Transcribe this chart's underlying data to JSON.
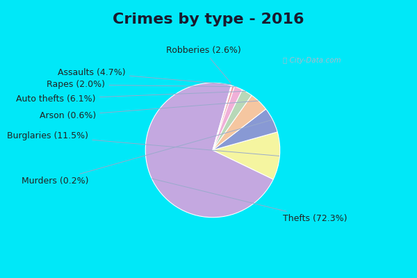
{
  "title": "Crimes by type - 2016",
  "title_fontsize": 16,
  "title_fontweight": "bold",
  "labels": [
    "Thefts",
    "Burglaries",
    "Auto thefts",
    "Assaults",
    "Robberies",
    "Rapes",
    "Arson",
    "Murders"
  ],
  "percentages": [
    72.3,
    11.5,
    6.1,
    4.7,
    2.6,
    2.0,
    0.6,
    0.2
  ],
  "colors": [
    "#c4a8e0",
    "#f5f5a0",
    "#8899d4",
    "#f5c6a0",
    "#b8d8b8",
    "#f0b0d8",
    "#f0a0a8",
    "#d0ead0"
  ],
  "startangle": 74,
  "bg_outer": "#00e8f8",
  "bg_inner": "#d0ecd8",
  "watermark_text": "ⓘ City-Data.com",
  "label_fontsize": 9,
  "label_color": "#222222"
}
